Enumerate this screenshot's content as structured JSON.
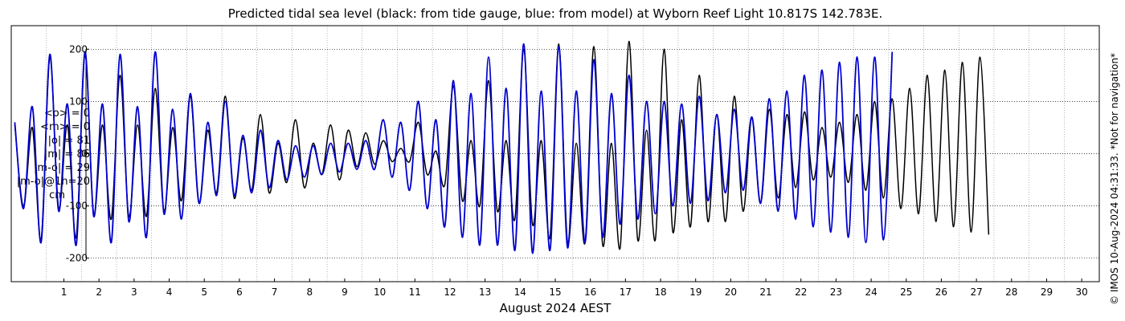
{
  "title": "Predicted tidal sea level (black: from tide gauge, blue: from model) at Wyborn Reef Light 10.817S 142.783E.",
  "xlabel": "August 2024 AEST",
  "credit": "© IMOS 10-Aug-2024 04:31:33. *Not for navigation*",
  "stats": {
    "mean_obs": "<o> = 0",
    "mean_model": "<m> = 0",
    "abs_obs": "|o| = 81",
    "abs_model": "|m| = 86",
    "abs_diff": "|m-o| = 29",
    "abs_diff_1h": "|m-o|@1h=20",
    "unit": "cm"
  },
  "colors": {
    "observed": "#000000",
    "model": "#0000cc",
    "grid": "#888888"
  },
  "chart_data": {
    "type": "line",
    "title": "Predicted tidal sea level (black: from tide gauge, blue: from model) at Wyborn Reef Light 10.817S 142.783E.",
    "xlabel": "August 2024 AEST",
    "ylabel": "",
    "xlim": [
      0,
      31
    ],
    "ylim": [
      -245,
      245
    ],
    "xticks": [
      1,
      2,
      3,
      4,
      5,
      6,
      7,
      8,
      9,
      10,
      11,
      12,
      13,
      14,
      15,
      16,
      17,
      18,
      19,
      20,
      21,
      22,
      23,
      24,
      25,
      26,
      27,
      28,
      29,
      30
    ],
    "yticks": [
      -200,
      -100,
      0,
      100,
      200
    ],
    "grid": true,
    "samples_per_day": 4,
    "series": [
      {
        "name": "from tide gauge",
        "values": [
          55,
          -100,
          50,
          -165,
          185,
          -105,
          55,
          -160,
          190,
          -115,
          55,
          -125,
          150,
          -120,
          55,
          -120,
          125,
          -110,
          50,
          -90,
          110,
          -95,
          45,
          -75,
          110,
          -85,
          30,
          -70,
          75,
          -75,
          20,
          -55,
          65,
          -65,
          20,
          -40,
          55,
          -50,
          45,
          -25,
          40,
          -20,
          25,
          -15,
          10,
          -15,
          60,
          -40,
          5,
          -60,
          130,
          -90,
          25,
          -100,
          140,
          -110,
          25,
          -125,
          200,
          -135,
          25,
          -160,
          210,
          -170,
          20,
          -170,
          205,
          -175,
          20,
          -180,
          215,
          -165,
          45,
          -165,
          200,
          -150,
          65,
          -140,
          150,
          -130,
          75,
          -130,
          110,
          -110,
          70,
          -95,
          85,
          -85,
          75,
          -65,
          80,
          -50,
          50,
          -45,
          60,
          -55,
          75,
          -70,
          100,
          -85,
          105,
          -105,
          125,
          -115,
          150,
          -130,
          160,
          -140,
          175,
          -150,
          185,
          -155
        ]
      },
      {
        "name": "from model",
        "values": [
          60,
          -105,
          90,
          -170,
          190,
          -110,
          95,
          -175,
          195,
          -120,
          95,
          -170,
          190,
          -130,
          90,
          -160,
          195,
          -115,
          85,
          -125,
          115,
          -95,
          60,
          -80,
          100,
          -80,
          35,
          -75,
          45,
          -65,
          25,
          -50,
          15,
          -45,
          15,
          -40,
          20,
          -35,
          20,
          -30,
          25,
          -30,
          65,
          -45,
          60,
          -70,
          100,
          -105,
          65,
          -140,
          140,
          -160,
          115,
          -175,
          185,
          -175,
          125,
          -185,
          210,
          -190,
          120,
          -185,
          205,
          -180,
          120,
          -170,
          180,
          -160,
          115,
          -135,
          150,
          -125,
          100,
          -115,
          100,
          -100,
          95,
          -95,
          110,
          -90,
          75,
          -75,
          85,
          -70,
          70,
          -95,
          105,
          -110,
          120,
          -125,
          150,
          -140,
          160,
          -150,
          175,
          -160,
          185,
          -170,
          185,
          -165,
          195
        ]
      }
    ]
  }
}
